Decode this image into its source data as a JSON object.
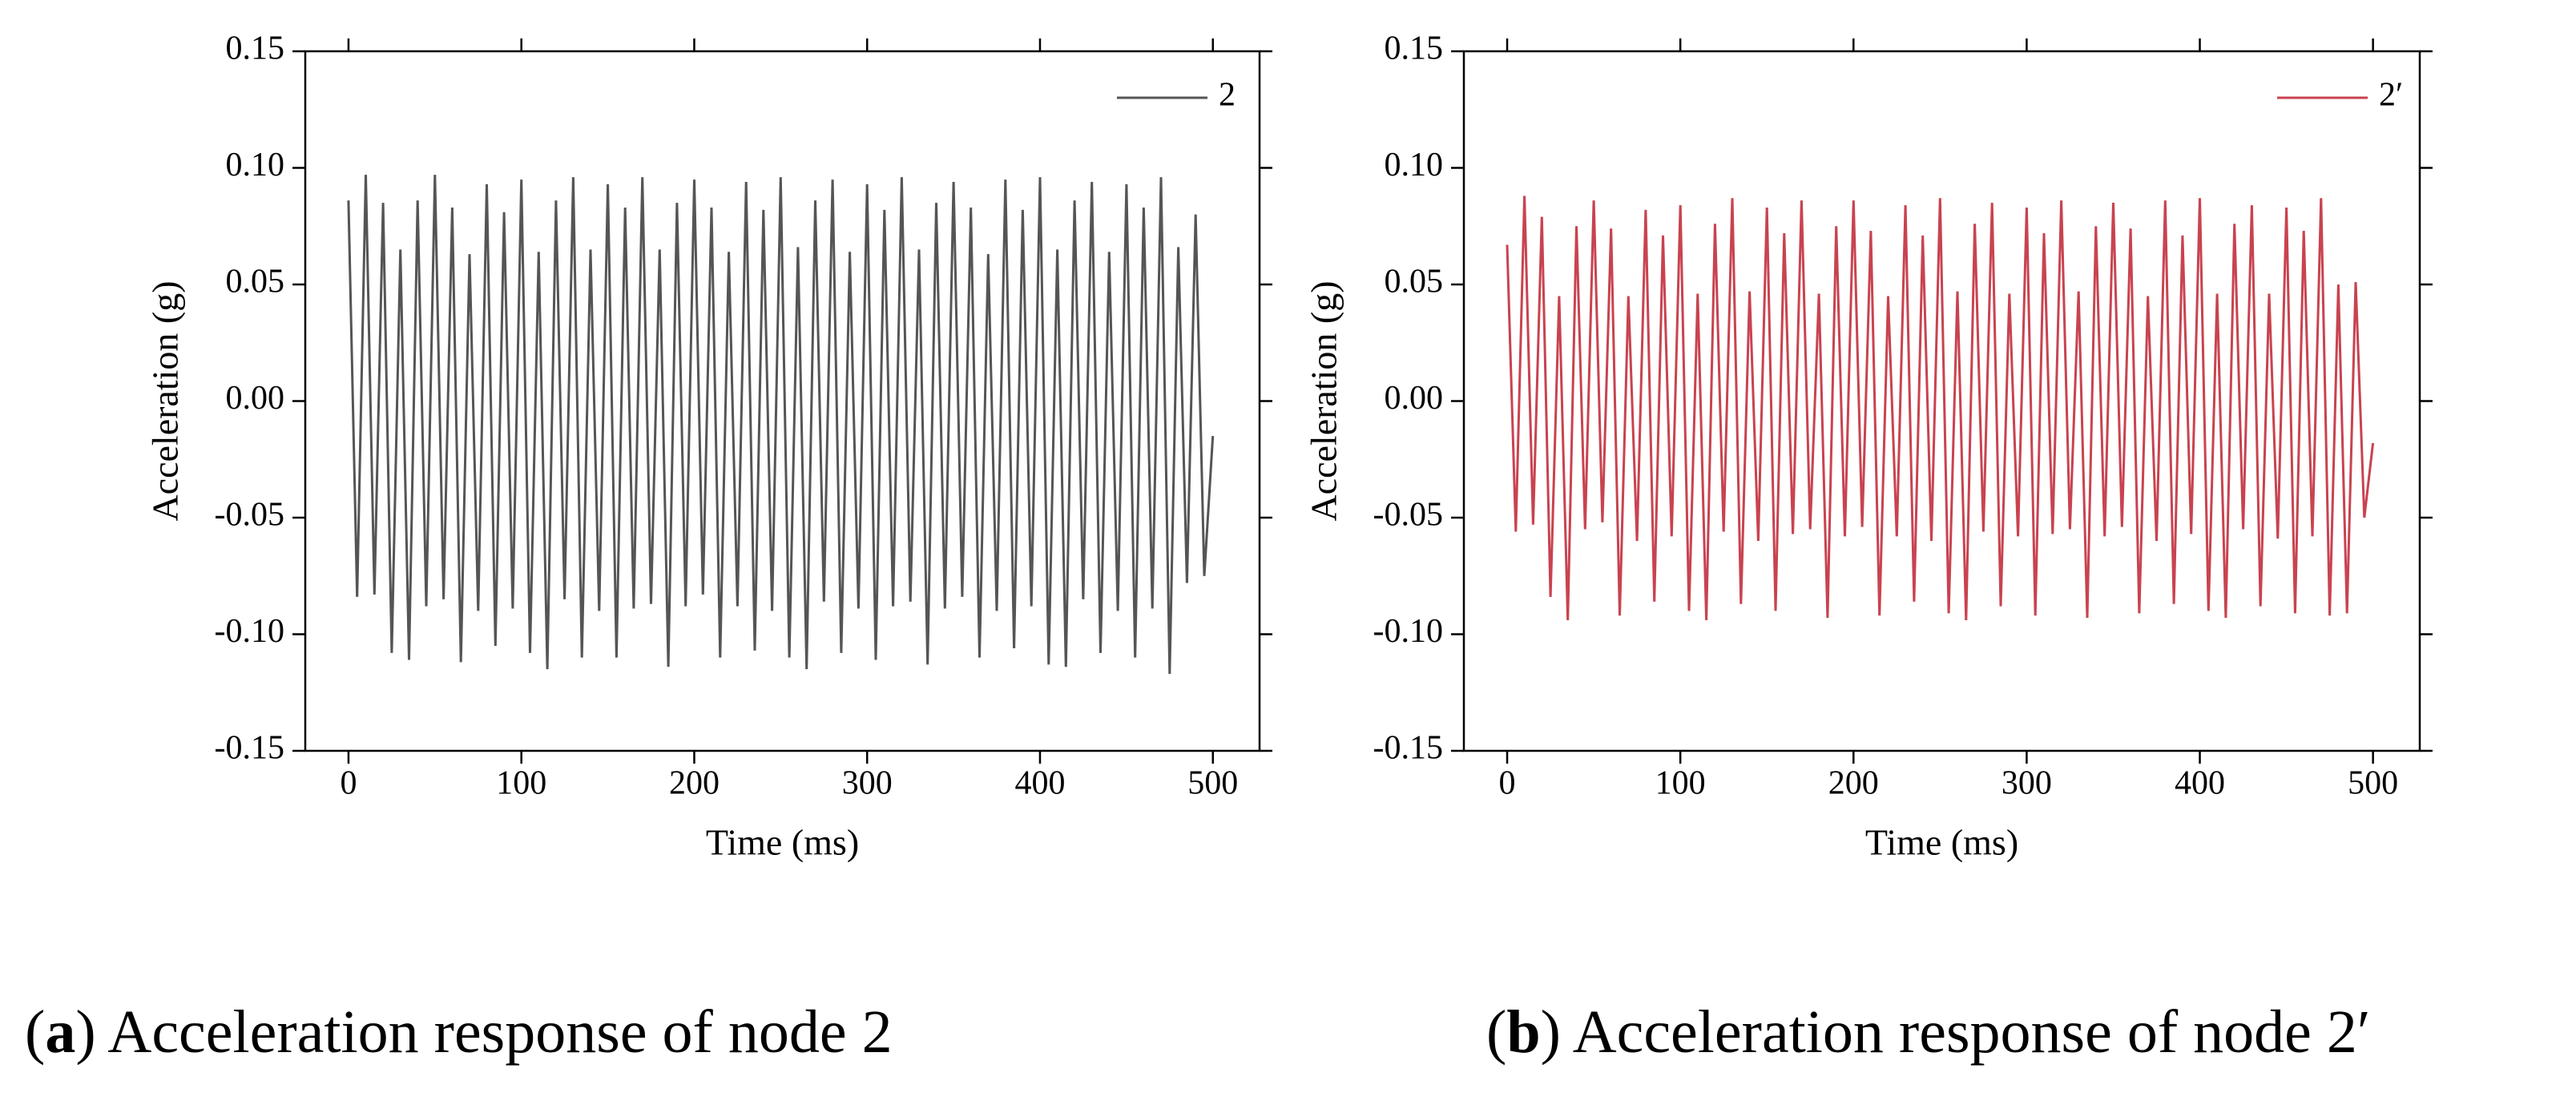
{
  "chart_data": [
    {
      "type": "line",
      "x_label": "Time (ms)",
      "y_label": "Acceleration (g)",
      "caption_parts": [
        "(",
        "a",
        ") Acceleration response of node 2"
      ],
      "xlim": [
        -25,
        527
      ],
      "xticks": [
        0,
        100,
        200,
        300,
        400,
        500
      ],
      "ylim": [
        -0.15,
        0.15
      ],
      "yticks": [
        -0.15,
        {
          "value": -0.1,
          "label": "-0.10"
        },
        -0.05,
        {
          "value": 0,
          "label": "0.00"
        },
        0.05,
        {
          "value": 0.1,
          "label": "0.10"
        },
        0.15
      ],
      "legend": "upper right",
      "x": [
        0,
        5,
        10,
        15,
        20,
        25,
        30,
        35,
        40,
        45,
        50,
        55,
        60,
        65,
        70,
        75,
        80,
        85,
        90,
        95,
        100,
        105,
        110,
        115,
        120,
        125,
        130,
        135,
        140,
        145,
        150,
        155,
        160,
        165,
        170,
        175,
        180,
        185,
        190,
        195,
        200,
        205,
        210,
        215,
        220,
        225,
        230,
        235,
        240,
        245,
        250,
        255,
        260,
        265,
        270,
        275,
        280,
        285,
        290,
        295,
        300,
        305,
        310,
        315,
        320,
        325,
        330,
        335,
        340,
        345,
        350,
        355,
        360,
        365,
        370,
        375,
        380,
        385,
        390,
        395,
        400,
        405,
        410,
        415,
        420,
        425,
        430,
        435,
        440,
        445,
        450,
        455,
        460,
        465,
        470,
        475,
        480,
        485,
        490,
        495,
        500
      ],
      "series": [
        {
          "name": "2",
          "color": "#555555",
          "values": [
            0.086,
            -0.084,
            0.097,
            -0.083,
            0.085,
            -0.108,
            0.065,
            -0.111,
            0.086,
            -0.088,
            0.097,
            -0.085,
            0.083,
            -0.112,
            0.063,
            -0.09,
            0.093,
            -0.105,
            0.081,
            -0.089,
            0.095,
            -0.108,
            0.064,
            -0.115,
            0.086,
            -0.085,
            0.096,
            -0.11,
            0.065,
            -0.09,
            0.093,
            -0.11,
            0.083,
            -0.089,
            0.096,
            -0.087,
            0.065,
            -0.114,
            0.085,
            -0.088,
            0.095,
            -0.083,
            0.083,
            -0.11,
            0.064,
            -0.088,
            0.094,
            -0.107,
            0.082,
            -0.09,
            0.096,
            -0.11,
            0.066,
            -0.115,
            0.086,
            -0.086,
            0.095,
            -0.108,
            0.064,
            -0.089,
            0.093,
            -0.111,
            0.082,
            -0.088,
            0.096,
            -0.086,
            0.065,
            -0.113,
            0.085,
            -0.089,
            0.094,
            -0.084,
            0.083,
            -0.11,
            0.063,
            -0.09,
            0.095,
            -0.106,
            0.082,
            -0.088,
            0.096,
            -0.113,
            0.065,
            -0.114,
            0.086,
            -0.085,
            0.094,
            -0.108,
            0.064,
            -0.09,
            0.093,
            -0.11,
            0.083,
            -0.089,
            0.096,
            -0.117,
            0.066,
            -0.078,
            0.08,
            -0.075,
            -0.015
          ]
        }
      ]
    },
    {
      "type": "line",
      "x_label": "Time (ms)",
      "y_label": "Acceleration (g)",
      "caption_parts": [
        "(",
        "b",
        ") Acceleration response of node 2′"
      ],
      "xlim": [
        -25,
        527
      ],
      "xticks": [
        0,
        100,
        200,
        300,
        400,
        500
      ],
      "ylim": [
        -0.15,
        0.15
      ],
      "yticks": [
        -0.15,
        {
          "value": -0.1,
          "label": "-0.10"
        },
        -0.05,
        {
          "value": 0,
          "label": "0.00"
        },
        0.05,
        {
          "value": 0.1,
          "label": "0.10"
        },
        0.15
      ],
      "legend": "upper right",
      "x": [
        0,
        5,
        10,
        15,
        20,
        25,
        30,
        35,
        40,
        45,
        50,
        55,
        60,
        65,
        70,
        75,
        80,
        85,
        90,
        95,
        100,
        105,
        110,
        115,
        120,
        125,
        130,
        135,
        140,
        145,
        150,
        155,
        160,
        165,
        170,
        175,
        180,
        185,
        190,
        195,
        200,
        205,
        210,
        215,
        220,
        225,
        230,
        235,
        240,
        245,
        250,
        255,
        260,
        265,
        270,
        275,
        280,
        285,
        290,
        295,
        300,
        305,
        310,
        315,
        320,
        325,
        330,
        335,
        340,
        345,
        350,
        355,
        360,
        365,
        370,
        375,
        380,
        385,
        390,
        395,
        400,
        405,
        410,
        415,
        420,
        425,
        430,
        435,
        440,
        445,
        450,
        455,
        460,
        465,
        470,
        475,
        480,
        485,
        490,
        495,
        500
      ],
      "series": [
        {
          "name": "2′",
          "color": "#c8434f",
          "values": [
            0.067,
            -0.056,
            0.088,
            -0.053,
            0.079,
            -0.084,
            0.045,
            -0.094,
            0.075,
            -0.055,
            0.086,
            -0.052,
            0.074,
            -0.092,
            0.045,
            -0.06,
            0.082,
            -0.086,
            0.071,
            -0.058,
            0.084,
            -0.09,
            0.046,
            -0.094,
            0.076,
            -0.056,
            0.087,
            -0.087,
            0.047,
            -0.06,
            0.083,
            -0.09,
            0.072,
            -0.057,
            0.086,
            -0.055,
            0.046,
            -0.093,
            0.075,
            -0.058,
            0.086,
            -0.054,
            0.073,
            -0.092,
            0.045,
            -0.058,
            0.084,
            -0.086,
            0.071,
            -0.06,
            0.087,
            -0.091,
            0.047,
            -0.094,
            0.076,
            -0.056,
            0.085,
            -0.088,
            0.046,
            -0.058,
            0.083,
            -0.092,
            0.072,
            -0.057,
            0.086,
            -0.055,
            0.047,
            -0.093,
            0.075,
            -0.058,
            0.085,
            -0.054,
            0.074,
            -0.091,
            0.045,
            -0.06,
            0.086,
            -0.087,
            0.071,
            -0.057,
            0.087,
            -0.09,
            0.046,
            -0.093,
            0.076,
            -0.055,
            0.084,
            -0.088,
            0.046,
            -0.059,
            0.083,
            -0.091,
            0.073,
            -0.058,
            0.087,
            -0.092,
            0.05,
            -0.091,
            0.051,
            -0.05,
            -0.018
          ]
        }
      ]
    }
  ]
}
